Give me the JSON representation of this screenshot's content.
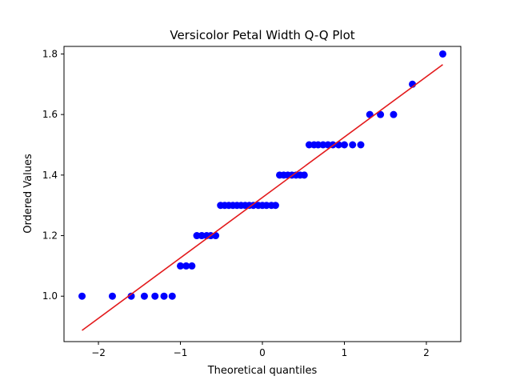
{
  "chart_data": {
    "type": "scatter",
    "title": "Versicolor Petal Width Q-Q Plot",
    "xlabel": "Theoretical quantiles",
    "ylabel": "Ordered Values",
    "xlim": [
      -2.42,
      2.42
    ],
    "ylim": [
      0.85,
      1.825
    ],
    "x_ticks": [
      {
        "value": -2,
        "label": "−2"
      },
      {
        "value": -1,
        "label": "−1"
      },
      {
        "value": 0,
        "label": "0"
      },
      {
        "value": 1,
        "label": "1"
      },
      {
        "value": 2,
        "label": "2"
      }
    ],
    "y_ticks": [
      {
        "value": 1.0,
        "label": "1.0"
      },
      {
        "value": 1.2,
        "label": "1.2"
      },
      {
        "value": 1.4,
        "label": "1.4"
      },
      {
        "value": 1.6,
        "label": "1.6"
      },
      {
        "value": 1.8,
        "label": "1.8"
      }
    ],
    "grid": false,
    "colors": {
      "points": "#0000ff",
      "fit_line": "#e31a1c"
    },
    "series": [
      {
        "name": "ordered values",
        "kind": "points",
        "x": [
          -2.2,
          -1.83,
          -1.6,
          -1.44,
          -1.31,
          -1.2,
          -1.1,
          -1.0,
          -0.93,
          -0.86,
          -0.8,
          -0.74,
          -0.68,
          -0.63,
          -0.57,
          -0.51,
          -0.46,
          -0.41,
          -0.36,
          -0.31,
          -0.26,
          -0.21,
          -0.16,
          -0.11,
          -0.05,
          0.0,
          0.05,
          0.11,
          0.16,
          0.21,
          0.26,
          0.31,
          0.36,
          0.41,
          0.46,
          0.51,
          0.57,
          0.63,
          0.68,
          0.74,
          0.8,
          0.86,
          0.93,
          1.0,
          1.1,
          1.2,
          1.31,
          1.44,
          1.6,
          1.83,
          2.2
        ],
        "y": [
          1.0,
          1.0,
          1.0,
          1.0,
          1.0,
          1.0,
          1.0,
          1.1,
          1.1,
          1.1,
          1.2,
          1.2,
          1.2,
          1.2,
          1.2,
          1.3,
          1.3,
          1.3,
          1.3,
          1.3,
          1.3,
          1.3,
          1.3,
          1.3,
          1.3,
          1.3,
          1.3,
          1.3,
          1.3,
          1.4,
          1.4,
          1.4,
          1.4,
          1.4,
          1.4,
          1.4,
          1.5,
          1.5,
          1.5,
          1.5,
          1.5,
          1.5,
          1.5,
          1.5,
          1.5,
          1.5,
          1.6,
          1.6,
          1.6,
          1.7,
          1.8
        ]
      },
      {
        "name": "fit line",
        "kind": "line",
        "x": [
          -2.2,
          2.2
        ],
        "y": [
          0.887,
          1.765
        ]
      }
    ]
  }
}
